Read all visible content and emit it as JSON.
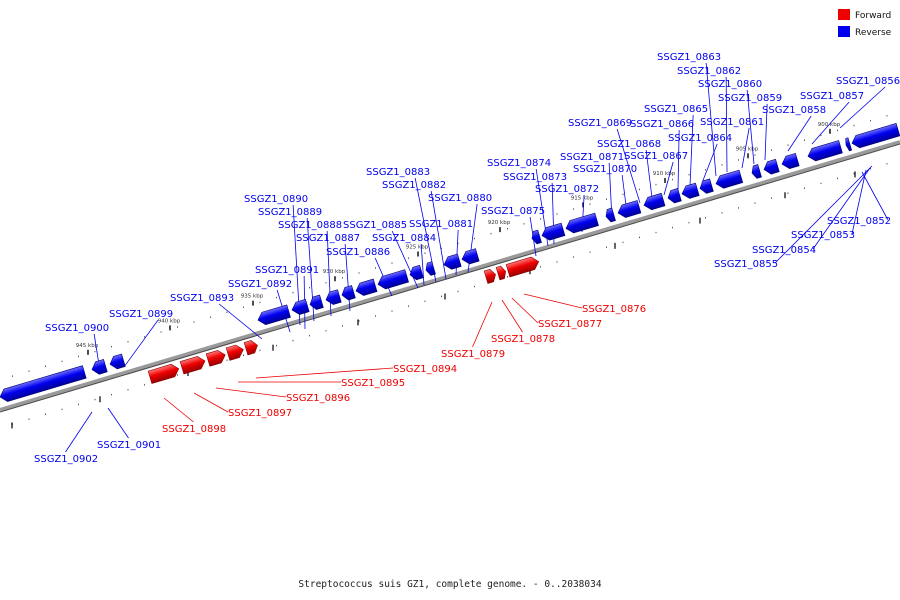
{
  "legend": {
    "forward_label": "Forward",
    "reverse_label": "Reverse",
    "forward_color": "#ee0000",
    "reverse_color": "#0000ee"
  },
  "caption": "Streptococcus suis GZ1, complete genome. - 0..2038034",
  "ticks": [
    "900 kbp",
    "905 kbp",
    "910 kbp",
    "915 kbp",
    "920 kbp",
    "925 kbp",
    "930 kbp",
    "935 kbp",
    "940 kbp",
    "945 kbp"
  ],
  "reverse_genes": [
    "SSGZ1_0852",
    "SSGZ1_0853",
    "SSGZ1_0854",
    "SSGZ1_0855",
    "SSGZ1_0856",
    "SSGZ1_0857",
    "SSGZ1_0858",
    "SSGZ1_0859",
    "SSGZ1_0860",
    "SSGZ1_0861",
    "SSGZ1_0862",
    "SSGZ1_0863",
    "SSGZ1_0864",
    "SSGZ1_0865",
    "SSGZ1_0866",
    "SSGZ1_0867",
    "SSGZ1_0868",
    "SSGZ1_0869",
    "SSGZ1_0870",
    "SSGZ1_0871",
    "SSGZ1_0872",
    "SSGZ1_0873",
    "SSGZ1_0874",
    "SSGZ1_0875",
    "SSGZ1_0880",
    "SSGZ1_0881",
    "SSGZ1_0882",
    "SSGZ1_0883",
    "SSGZ1_0884",
    "SSGZ1_0885",
    "SSGZ1_0886",
    "SSGZ1_0887",
    "SSGZ1_0888",
    "SSGZ1_0889",
    "SSGZ1_0890",
    "SSGZ1_0891",
    "SSGZ1_0892",
    "SSGZ1_0893",
    "SSGZ1_0899",
    "SSGZ1_0900",
    "SSGZ1_0901",
    "SSGZ1_0902"
  ],
  "forward_genes": [
    "SSGZ1_0876",
    "SSGZ1_0877",
    "SSGZ1_0878",
    "SSGZ1_0879",
    "SSGZ1_0894",
    "SSGZ1_0895",
    "SSGZ1_0896",
    "SSGZ1_0897",
    "SSGZ1_0898"
  ]
}
